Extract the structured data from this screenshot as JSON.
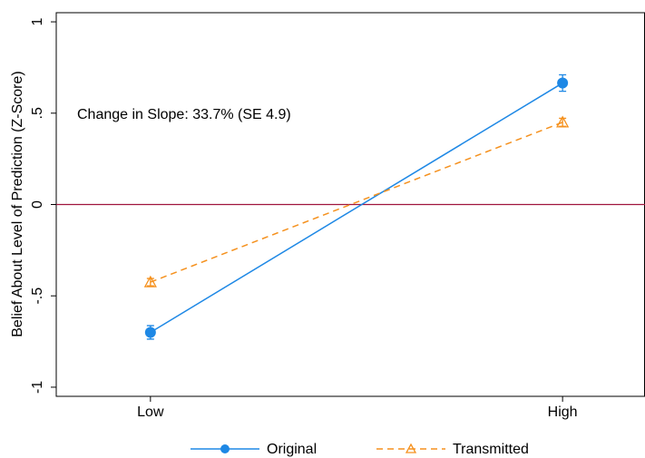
{
  "chart_data": {
    "type": "line",
    "ylabel": "Belief About Level of Prediction (Z-Score)",
    "annotation": "Change in Slope: 33.7% (SE 4.9)",
    "categories": [
      "Low",
      "High"
    ],
    "series": [
      {
        "name": "Original",
        "color": "#1e88e5",
        "marker": "circle",
        "dashed": false,
        "values": [
          -0.7,
          0.665
        ],
        "errors": [
          0.037,
          0.045
        ]
      },
      {
        "name": "Transmitted",
        "color": "#f5911e",
        "marker": "triangle",
        "dashed": true,
        "values": [
          -0.425,
          0.45
        ],
        "errors": [
          0.02,
          0.022
        ]
      }
    ],
    "ylim": [
      -1.05,
      1.05
    ],
    "yticks": [
      {
        "value": -1,
        "label": "-1"
      },
      {
        "value": -0.5,
        "label": "-.5"
      },
      0,
      {
        "value": 0.5,
        "label": ".5"
      },
      1
    ],
    "hline": 0,
    "hline_color": "#a0153e"
  }
}
